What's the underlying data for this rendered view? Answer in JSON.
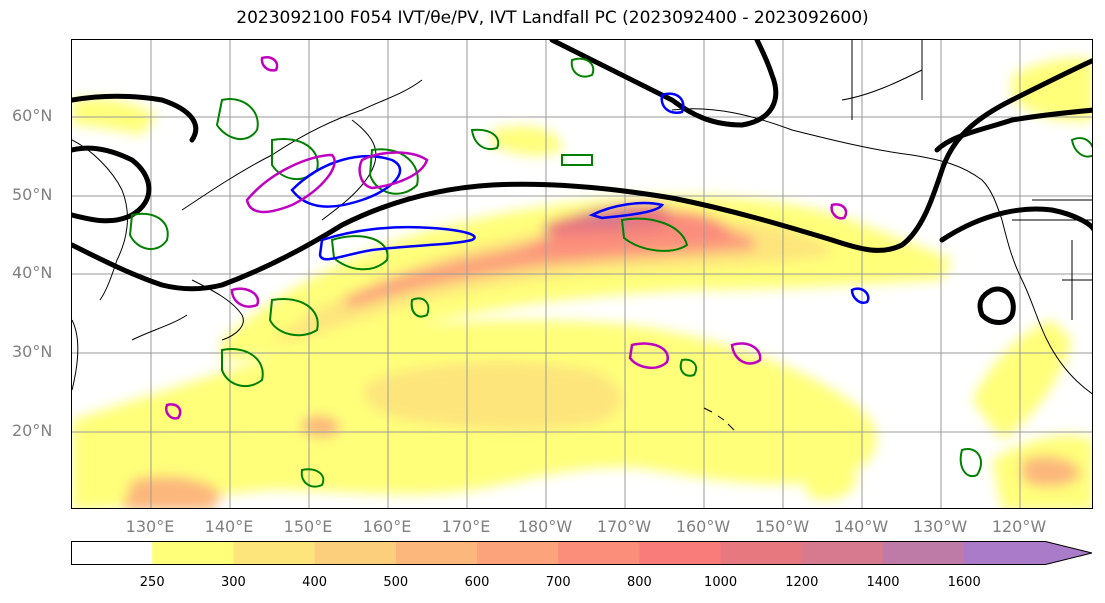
{
  "title": "2023092100 F054 IVT/θe/PV, IVT Landfall PC (2023092400 - 2023092600)",
  "map": {
    "lat_labels": [
      "60°N",
      "50°N",
      "40°N",
      "30°N",
      "20°N"
    ],
    "lon_labels": [
      "130°E",
      "140°E",
      "150°E",
      "160°E",
      "170°E",
      "180°W",
      "170°W",
      "160°W",
      "150°W",
      "140°W",
      "130°W",
      "120°W"
    ],
    "colors": {
      "heavy_contour": "#000000",
      "green_contour": "#008000",
      "blue_contour": "#0000ff",
      "magenta_contour": "#c000c0",
      "grid": "#9a9a9a",
      "coastline": "#000000"
    }
  },
  "colorbar": {
    "labels": [
      "250",
      "300",
      "400",
      "500",
      "600",
      "700",
      "800",
      "1000",
      "1200",
      "1400",
      "1600"
    ],
    "colors": [
      "#ffffff",
      "#ffff7a",
      "#fde57b",
      "#fccf7d",
      "#fcb77c",
      "#fca37c",
      "#fb8d7b",
      "#f97b7a",
      "#e8787f",
      "#d77a90",
      "#bf7ba8",
      "#a97bc8"
    ]
  }
}
